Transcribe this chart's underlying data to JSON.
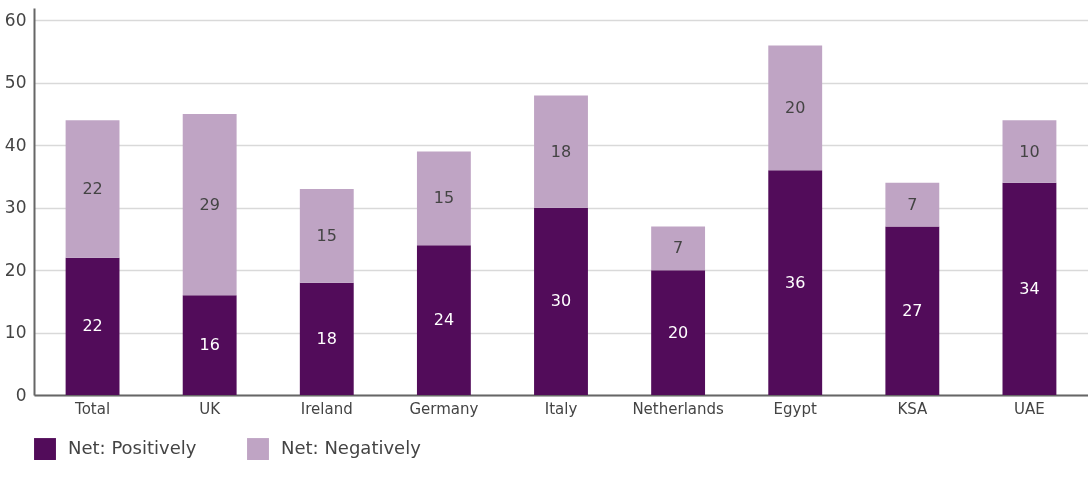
{
  "chart_data": {
    "type": "bar",
    "stacked": true,
    "categories": [
      "Total",
      "UK",
      "Ireland",
      "Germany",
      "Italy",
      "Netherlands",
      "Egypt",
      "KSA",
      "UAE"
    ],
    "series": [
      {
        "name": "Net: Positively",
        "color": "#520c5a",
        "values": [
          22,
          16,
          18,
          24,
          30,
          20,
          36,
          27,
          34
        ]
      },
      {
        "name": "Net: Negatively",
        "color": "#bfa4c4",
        "values": [
          22,
          29,
          15,
          15,
          18,
          7,
          20,
          7,
          10
        ]
      }
    ],
    "ylim": [
      0,
      62
    ],
    "yticks": [
      0,
      10,
      20,
      30,
      40,
      50,
      60
    ],
    "grid": "y",
    "legend": "bottom",
    "data_labels": true
  }
}
